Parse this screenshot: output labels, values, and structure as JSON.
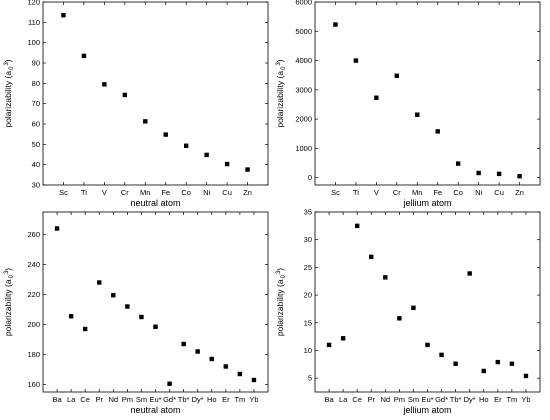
{
  "chart_data": [
    {
      "type": "scatter",
      "categories": [
        "Sc",
        "Ti",
        "V",
        "Cr",
        "Mn",
        "Fe",
        "Co",
        "Ni",
        "Cu",
        "Zn"
      ],
      "values": [
        113.5,
        93.5,
        79.5,
        74.3,
        61.3,
        54.8,
        49.3,
        44.8,
        40.3,
        37.6
      ],
      "xlabel": "neutral atom",
      "ylabel": "polarizability (a",
      "ylabel_sub": "0",
      "ylabel_sup": "3",
      "ylabel_close": ")",
      "ylim": [
        30,
        120
      ],
      "yticks": [
        30,
        40,
        50,
        60,
        70,
        80,
        90,
        100,
        110,
        120
      ]
    },
    {
      "type": "scatter",
      "categories": [
        "Sc",
        "Ti",
        "V",
        "Cr",
        "Mn",
        "Fe",
        "Co",
        "Ni",
        "Cu",
        "Zn"
      ],
      "values": [
        5230,
        4000,
        2730,
        3480,
        2150,
        1580,
        480,
        160,
        130,
        50
      ],
      "xlabel": "jellium atom",
      "ylabel": "polarizability (a",
      "ylabel_sub": "0",
      "ylabel_sup": "3",
      "ylabel_close": ")",
      "ylim": [
        -250,
        6000
      ],
      "yticks": [
        0,
        1000,
        2000,
        3000,
        4000,
        5000,
        6000
      ]
    },
    {
      "type": "scatter",
      "categories": [
        "Ba",
        "La",
        "Ce",
        "Pr",
        "Nd",
        "Pm",
        "Sm",
        "Eu*",
        "Gd*",
        "Tb*",
        "Dy*",
        "Ho",
        "Er",
        "Tm",
        "Yb"
      ],
      "values": [
        264,
        205.5,
        197,
        228,
        219.5,
        212,
        205,
        198.5,
        160.5,
        187,
        182,
        177,
        172,
        167,
        163
      ],
      "xlabel": "neutral atom",
      "ylabel": "polarizability (a",
      "ylabel_sub": "0",
      "ylabel_sup": "3",
      "ylabel_close": ")",
      "ylim": [
        155,
        275
      ],
      "yticks": [
        160,
        180,
        200,
        220,
        240,
        260
      ]
    },
    {
      "type": "scatter",
      "categories": [
        "Ba",
        "La",
        "Ce",
        "Pr",
        "Nd",
        "Pm",
        "Sm",
        "Eu*",
        "Gd*",
        "Tb*",
        "Dy*",
        "Ho",
        "Er",
        "Tm",
        "Yb"
      ],
      "values": [
        11,
        12.2,
        32.5,
        26.9,
        23.2,
        15.8,
        17.7,
        11,
        9.2,
        7.6,
        23.9,
        6.3,
        7.9,
        7.6,
        5.4
      ],
      "xlabel": "jellium atom",
      "ylabel": "polarizability (a",
      "ylabel_sub": "0",
      "ylabel_sup": "3",
      "ylabel_close": ")",
      "ylim": [
        2.5,
        35
      ],
      "yticks": [
        5,
        10,
        15,
        20,
        25,
        30,
        35
      ]
    }
  ]
}
